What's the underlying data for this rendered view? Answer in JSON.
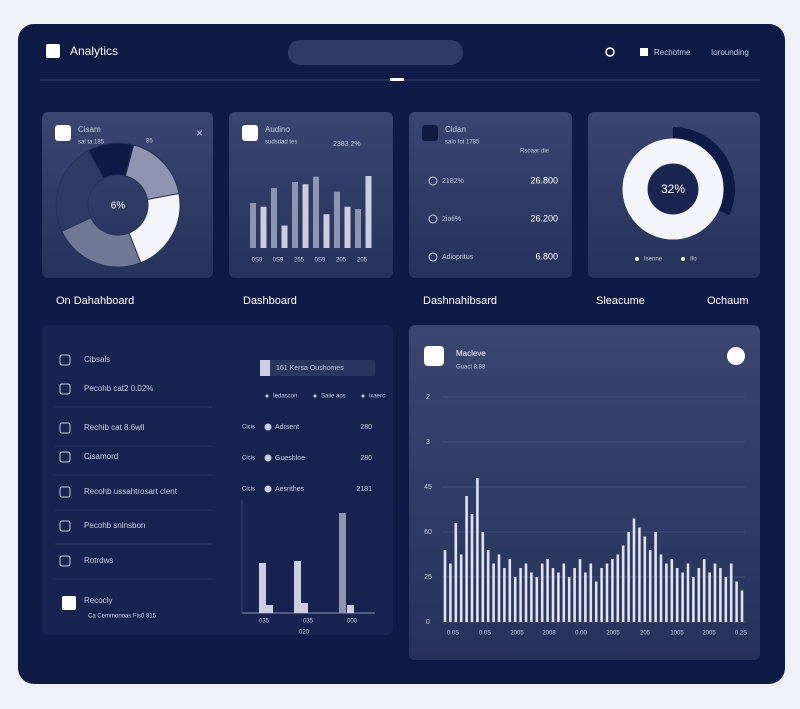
{
  "header": {
    "title": "Analytics",
    "links": [
      "Rechotme",
      "Iorounding"
    ]
  },
  "cards": [
    {
      "title": "Cisam",
      "subtitle": "sal ta 185",
      "badge": "85",
      "caption": "On Dahahboard",
      "center": "6%",
      "pie": [
        12,
        18,
        22,
        24,
        24
      ]
    },
    {
      "title": "Audino",
      "subtitle": "sudsdad tes",
      "badge": "2383 2%",
      "caption": "Dashboard",
      "bars": [
        60,
        55,
        80,
        30,
        88,
        85,
        95,
        45,
        75,
        55,
        52,
        96
      ],
      "labels": [
        "0S9",
        "0S9",
        "255",
        "0S9",
        "205",
        "205"
      ]
    },
    {
      "title": "Cidan",
      "subtitle": "salo fot 1785",
      "badge": "Rsoaar die",
      "caption": "Dashnahibsard",
      "rows": [
        [
          "2182%",
          "26.800"
        ],
        [
          "2ioti%",
          "26.200"
        ],
        [
          "Adiopritus",
          "6.800"
        ]
      ]
    },
    {
      "caption": "Sleacume",
      "caption2": "Ochaum",
      "center": "32%",
      "ring": 32,
      "legend": [
        "Isenne",
        "Ifo"
      ]
    }
  ],
  "list": {
    "items": [
      "Cibsals",
      "Pecohb cat2 0.02%",
      "Rechib cat 8.6wll",
      "Cisamord",
      "Recohb ussahtrosart clent",
      "Pecohb snlnsbon",
      "Rotrdws",
      "Recocly"
    ],
    "footer": "Ca Cemmonoas   Fis0 815",
    "button": "161 Kersa Oushomes",
    "legend": [
      "Iedascon",
      "Saiie aos",
      "ixaerc"
    ],
    "rows": [
      [
        "Cicis",
        "Adrsent",
        "280"
      ],
      [
        "Cicis",
        "Gueshloe",
        "280"
      ],
      [
        "Cicis",
        "Aesrithes",
        "2181"
      ]
    ],
    "bars": [
      50,
      8,
      52,
      10,
      100,
      8
    ],
    "labels": [
      "035",
      "035",
      "000"
    ],
    "sublabel": "020"
  },
  "trend": {
    "title": "Macleve",
    "subtitle": "Guact 8.88",
    "ylim": [
      0,
      5
    ],
    "yticks": [
      0,
      {
        "value": 1,
        "label": "25"
      },
      {
        "value": 2,
        "label": "60"
      },
      {
        "value": 3,
        "label": "45"
      },
      {
        "value": 4,
        "label": "3"
      },
      {
        "value": 5,
        "label": "2"
      }
    ],
    "values": [
      1.6,
      1.3,
      2.2,
      1.5,
      2.8,
      2.4,
      3.2,
      2.0,
      1.6,
      1.3,
      1.5,
      1.2,
      1.4,
      1.0,
      1.2,
      1.3,
      1.1,
      1.0,
      1.3,
      1.4,
      1.2,
      1.1,
      1.3,
      1.0,
      1.2,
      1.4,
      1.1,
      1.3,
      0.9,
      1.2,
      1.3,
      1.4,
      1.5,
      1.7,
      2.0,
      2.3,
      2.1,
      1.9,
      1.6,
      2.0,
      1.5,
      1.3,
      1.4,
      1.2,
      1.1,
      1.3,
      1.0,
      1.2,
      1.4,
      1.1,
      1.3,
      1.2,
      1.0,
      1.3,
      0.9,
      0.7
    ],
    "categories": [
      "0.0S",
      "0.0S",
      "2005",
      "2008",
      "0.00",
      "2005",
      "205",
      "1005",
      "2005",
      "0.2S"
    ]
  }
}
